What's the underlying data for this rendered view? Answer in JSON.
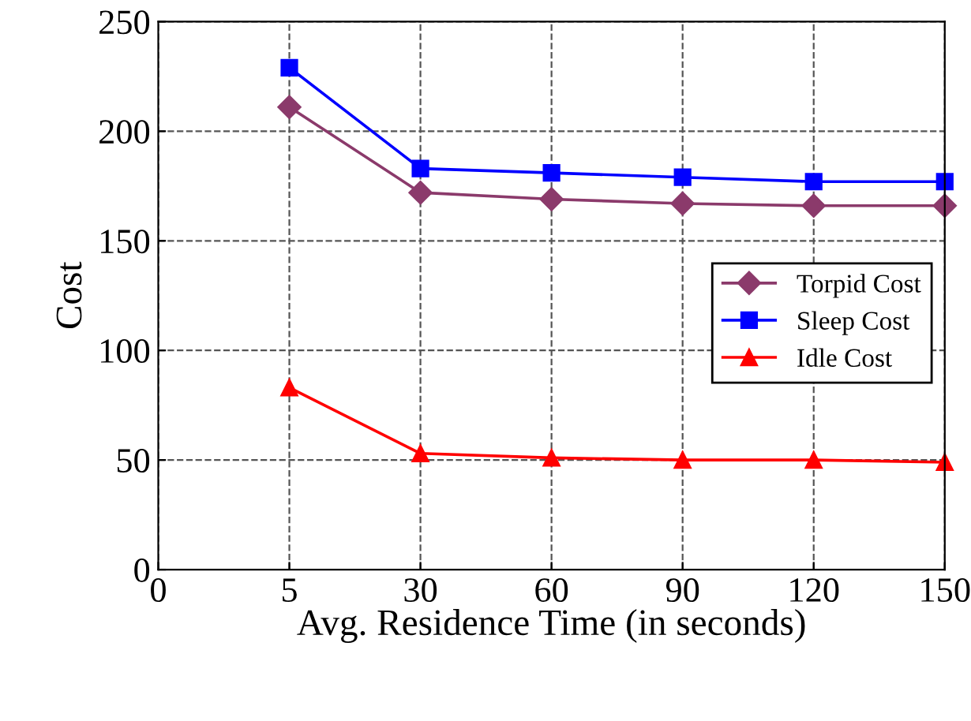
{
  "chart_data": {
    "type": "line",
    "xlabel": "Avg. Residence Time (in seconds)",
    "ylabel": "Cost",
    "categories": [
      "0",
      "5",
      "30",
      "60",
      "90",
      "120",
      "150"
    ],
    "series": [
      {
        "name": "Torpid Cost",
        "color": "#8b3a6b",
        "marker": "diamond",
        "values": [
          null,
          211,
          172,
          169,
          167,
          166,
          166
        ]
      },
      {
        "name": "Sleep Cost",
        "color": "#0000ff",
        "marker": "square",
        "values": [
          null,
          229,
          183,
          181,
          179,
          177,
          177
        ]
      },
      {
        "name": "Idle Cost",
        "color": "#ff0000",
        "marker": "triangle",
        "values": [
          null,
          83,
          53,
          51,
          50,
          50,
          49
        ]
      }
    ],
    "ylim": [
      0,
      250
    ],
    "yticks": [
      0,
      50,
      100,
      150,
      200,
      250
    ],
    "grid": true,
    "legend": "right",
    "line_style": "solid"
  }
}
